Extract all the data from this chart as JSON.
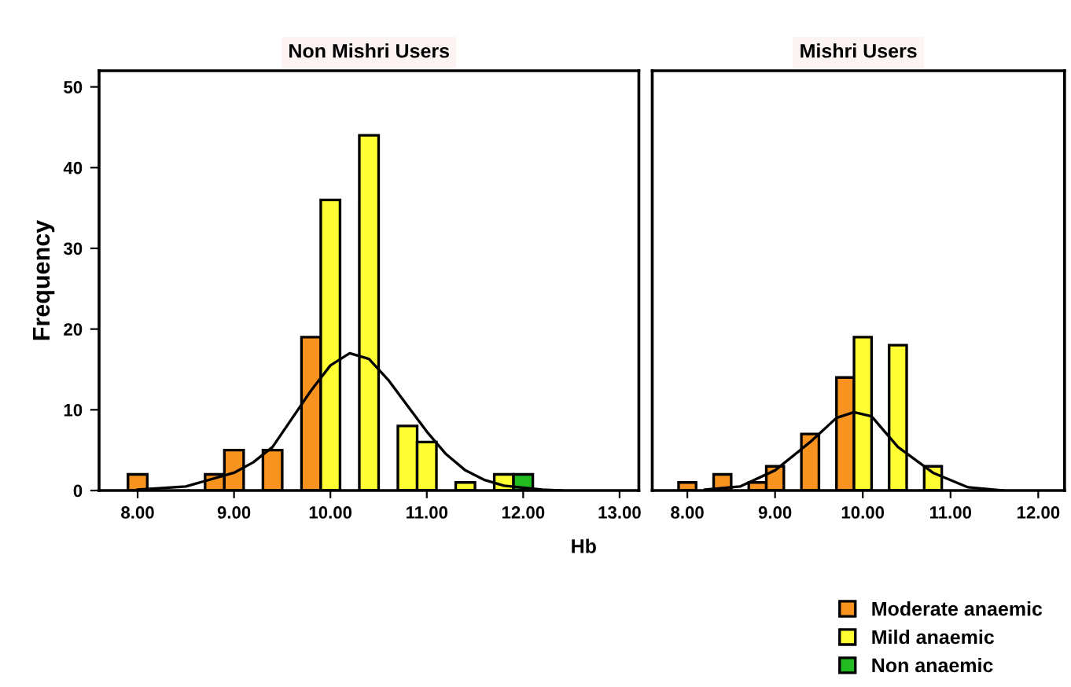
{
  "chart_data": [
    {
      "type": "histogram",
      "title": "Non Mishri Users",
      "ylabel": "Frequency",
      "xlabel": "Hb",
      "grid": false,
      "legend": "bottom right",
      "bins": [
        7.9,
        8.1,
        8.3,
        8.5,
        8.7,
        8.9,
        9.1,
        9.3,
        9.5,
        9.7,
        9.9,
        10.1,
        10.3,
        10.5,
        10.7,
        10.9,
        11.1,
        11.3,
        11.5,
        11.7,
        11.9,
        12.1
      ],
      "xlim": [
        7.6,
        13.2
      ],
      "xticks": [
        {
          "value": 8,
          "label": "8.00"
        },
        {
          "value": 9,
          "label": "9.00"
        },
        {
          "value": 10,
          "label": "10.00"
        },
        {
          "value": 11,
          "label": "11.00"
        },
        {
          "value": 12,
          "label": "12.00"
        },
        {
          "value": 13,
          "label": "13.00"
        }
      ],
      "ylim": [
        0,
        52
      ],
      "yticks": [
        0,
        10,
        20,
        30,
        40,
        50
      ],
      "series": [
        {
          "name": "Moderate anaemic",
          "color": "#f7931e",
          "values": [
            2,
            null,
            null,
            null,
            2,
            5,
            null,
            5,
            null,
            19,
            null,
            null,
            null,
            null,
            null,
            null,
            null,
            null,
            null,
            null,
            null
          ]
        },
        {
          "name": "Mild anaemic",
          "color": "#ffff33",
          "values": [
            null,
            null,
            null,
            null,
            null,
            null,
            null,
            null,
            null,
            null,
            36,
            null,
            44,
            null,
            8,
            6,
            null,
            1,
            null,
            2,
            null
          ]
        },
        {
          "name": "Non anaemic",
          "color": "#22bb22",
          "values": [
            null,
            null,
            null,
            null,
            null,
            null,
            null,
            null,
            null,
            null,
            null,
            null,
            null,
            null,
            null,
            null,
            null,
            null,
            null,
            null,
            2
          ]
        },
        {
          "type": "line",
          "color": "#000000",
          "x": [
            8.0,
            8.5,
            9.0,
            9.2,
            9.4,
            9.8,
            10.0,
            10.2,
            10.4,
            10.6,
            10.8,
            11.0,
            11.2,
            11.4,
            11.6,
            11.8,
            12.2,
            12.4
          ],
          "values": [
            0.1,
            0.5,
            2.2,
            3.5,
            5.4,
            12.4,
            15.5,
            17,
            16.3,
            13.7,
            10.5,
            7.3,
            4.5,
            2.5,
            1.3,
            0.6,
            0.1,
            0
          ]
        }
      ]
    },
    {
      "type": "histogram",
      "title": "Mishri Users",
      "grid": false,
      "tick_labels": "x",
      "bins": [
        7.9,
        8.1,
        8.3,
        8.5,
        8.7,
        8.9,
        9.1,
        9.3,
        9.5,
        9.7,
        9.9,
        10.1,
        10.3,
        10.5,
        10.7,
        10.9,
        11.1
      ],
      "xlim": [
        7.6,
        12.3
      ],
      "xticks": [
        {
          "value": 8,
          "label": "8.00"
        },
        {
          "value": 9,
          "label": "9.00"
        },
        {
          "value": 10,
          "label": "10.00"
        },
        {
          "value": 11,
          "label": "11.00"
        },
        {
          "value": 12,
          "label": "12.00"
        }
      ],
      "ylim": [
        0,
        52
      ],
      "series": [
        {
          "name": "Moderate anaemic",
          "color": "#f7931e",
          "values": [
            1,
            null,
            2,
            null,
            1,
            3,
            null,
            7,
            null,
            14,
            null,
            null,
            null,
            null,
            null,
            null
          ]
        },
        {
          "name": "Mild anaemic",
          "color": "#ffff33",
          "values": [
            null,
            null,
            null,
            null,
            null,
            null,
            null,
            null,
            null,
            null,
            19,
            null,
            18,
            null,
            3,
            null
          ]
        },
        {
          "type": "line",
          "color": "#000000",
          "x": [
            8.2,
            8.6,
            9.0,
            9.4,
            9.7,
            9.9,
            10.1,
            10.4,
            10.8,
            11.2,
            11.6
          ],
          "values": [
            0.1,
            0.5,
            2.5,
            6,
            9,
            9.7,
            9.2,
            5.4,
            2.2,
            0.4,
            0
          ]
        }
      ]
    }
  ]
}
